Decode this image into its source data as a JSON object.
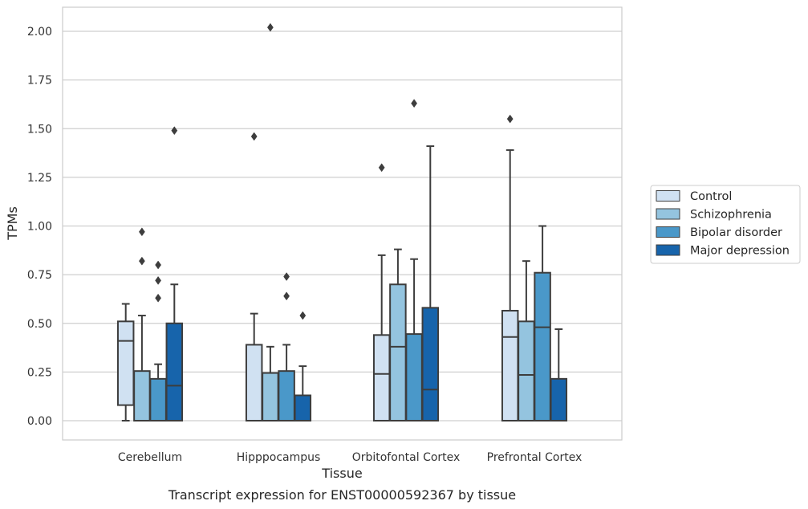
{
  "chart_data": {
    "type": "box",
    "xlabel": "Tissue",
    "ylabel": "TPMs",
    "caption": "Transcript expression for ENST00000592367 by tissue",
    "ylim": [
      -0.1,
      2.12
    ],
    "yticks": [
      0.0,
      0.25,
      0.5,
      0.75,
      1.0,
      1.25,
      1.5,
      1.75,
      2.0
    ],
    "ytick_labels": [
      "0.00",
      "0.25",
      "0.50",
      "0.75",
      "1.00",
      "1.25",
      "1.50",
      "1.75",
      "2.00"
    ],
    "grid": "horizontal",
    "legend_position": "right",
    "categories": [
      "Cerebellum",
      "Hipppocampus",
      "Orbitofontal Cortex",
      "Prefrontal Cortex"
    ],
    "series": [
      {
        "name": "Control",
        "color": "#d0e1f2",
        "boxes": [
          {
            "whislo": 0.0,
            "q1": 0.08,
            "med": 0.41,
            "q3": 0.51,
            "whishi": 0.6,
            "fliers": []
          },
          {
            "whislo": 0.0,
            "q1": 0.0,
            "med": 0.0,
            "q3": 0.39,
            "whishi": 0.55,
            "fliers": [
              1.46
            ]
          },
          {
            "whislo": 0.0,
            "q1": 0.0,
            "med": 0.24,
            "q3": 0.44,
            "whishi": 0.85,
            "fliers": [
              1.3
            ]
          },
          {
            "whislo": 0.0,
            "q1": 0.0,
            "med": 0.43,
            "q3": 0.565,
            "whishi": 1.39,
            "fliers": [
              1.55
            ]
          }
        ]
      },
      {
        "name": "Schizophrenia",
        "color": "#94c4df",
        "boxes": [
          {
            "whislo": 0.0,
            "q1": 0.0,
            "med": 0.0,
            "q3": 0.255,
            "whishi": 0.54,
            "fliers": [
              0.97,
              0.82
            ]
          },
          {
            "whislo": 0.0,
            "q1": 0.0,
            "med": 0.0,
            "q3": 0.245,
            "whishi": 0.38,
            "fliers": [
              2.02
            ]
          },
          {
            "whislo": 0.0,
            "q1": 0.0,
            "med": 0.38,
            "q3": 0.7,
            "whishi": 0.88,
            "fliers": []
          },
          {
            "whislo": 0.0,
            "q1": 0.0,
            "med": 0.235,
            "q3": 0.51,
            "whishi": 0.82,
            "fliers": []
          }
        ]
      },
      {
        "name": "Bipolar disorder",
        "color": "#4a98c9",
        "boxes": [
          {
            "whislo": 0.0,
            "q1": 0.0,
            "med": 0.0,
            "q3": 0.215,
            "whishi": 0.29,
            "fliers": [
              0.8,
              0.72,
              0.63
            ]
          },
          {
            "whislo": 0.0,
            "q1": 0.0,
            "med": 0.0,
            "q3": 0.255,
            "whishi": 0.39,
            "fliers": [
              0.74,
              0.64
            ]
          },
          {
            "whislo": 0.0,
            "q1": 0.0,
            "med": 0.0,
            "q3": 0.445,
            "whishi": 0.83,
            "fliers": [
              1.63
            ]
          },
          {
            "whislo": 0.0,
            "q1": 0.0,
            "med": 0.48,
            "q3": 0.76,
            "whishi": 1.0,
            "fliers": []
          }
        ]
      },
      {
        "name": "Major depression",
        "color": "#1764ab",
        "boxes": [
          {
            "whislo": 0.0,
            "q1": 0.0,
            "med": 0.18,
            "q3": 0.5,
            "whishi": 0.7,
            "fliers": [
              1.49
            ]
          },
          {
            "whislo": 0.0,
            "q1": 0.0,
            "med": 0.0,
            "q3": 0.13,
            "whishi": 0.28,
            "fliers": [
              0.54
            ]
          },
          {
            "whislo": 0.0,
            "q1": 0.0,
            "med": 0.16,
            "q3": 0.58,
            "whishi": 1.41,
            "fliers": []
          },
          {
            "whislo": 0.0,
            "q1": 0.0,
            "med": 0.0,
            "q3": 0.215,
            "whishi": 0.47,
            "fliers": []
          }
        ]
      }
    ]
  }
}
